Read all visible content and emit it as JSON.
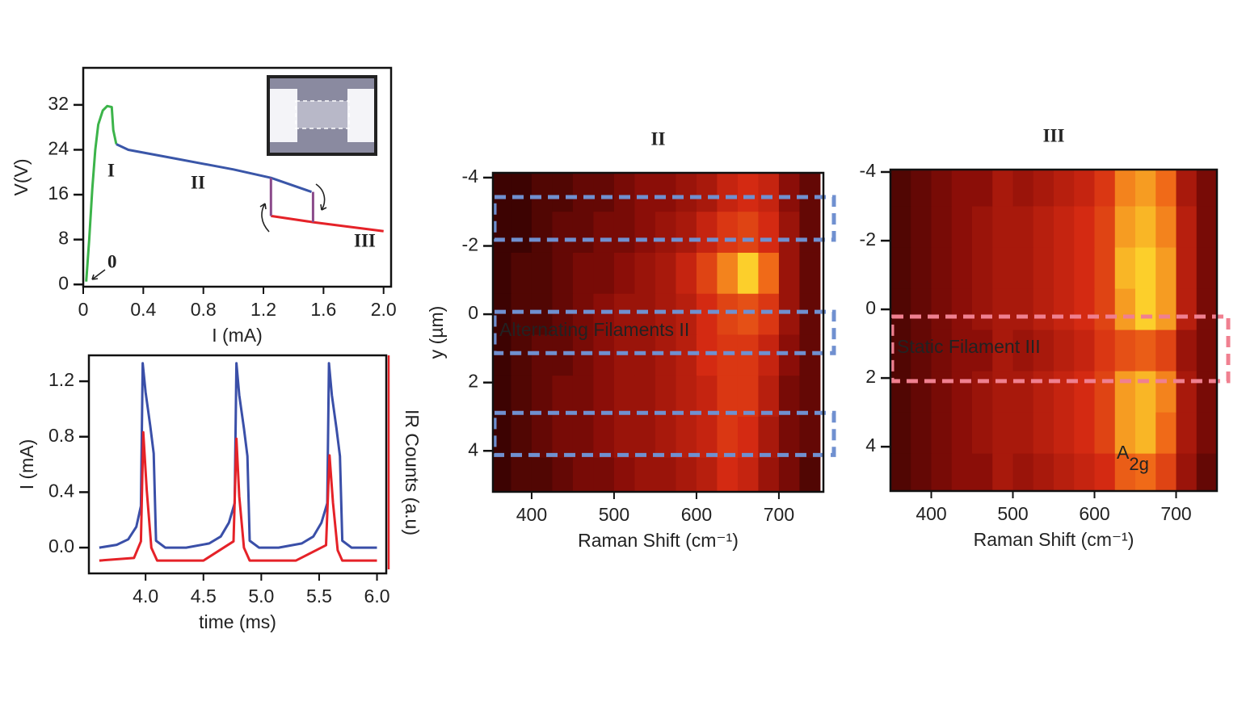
{
  "chart_data": [
    {
      "type": "line",
      "xlabel": "I (mA)",
      "ylabel": "V(V)",
      "xlim": [
        0,
        2.05
      ],
      "ylim": [
        -0.4,
        38.6
      ],
      "xticks": [
        0,
        0.4,
        0.8,
        1.2,
        1.6,
        {
          "value": 2,
          "label": "2.0"
        }
      ],
      "yticks": [
        0,
        8,
        16,
        24,
        32
      ],
      "series": [
        {
          "name": "I",
          "color": "#3cb44a",
          "x": [
            0.02,
            0.04,
            0.06,
            0.08,
            0.1,
            0.13,
            0.16,
            0.19,
            0.2,
            0.22
          ],
          "values": [
            0.5,
            8,
            17,
            24,
            28.5,
            31,
            31.8,
            31.6,
            27.5,
            25
          ]
        },
        {
          "name": "II",
          "color": "#3a56a8",
          "x": [
            0.22,
            0.3,
            0.6,
            1.0,
            1.25,
            1.52
          ],
          "values": [
            25,
            24,
            22.5,
            20.5,
            19,
            16.5
          ]
        },
        {
          "name": "III",
          "color": "#e52228",
          "x": [
            1.25,
            1.53,
            2.0
          ],
          "values": [
            12.2,
            11.1,
            9.5
          ]
        },
        {
          "color": "#8a4a8a",
          "x": [
            1.25,
            1.25
          ],
          "values": [
            12.2,
            19
          ]
        },
        {
          "color": "#8a4a8a",
          "x": [
            1.53,
            1.53
          ],
          "values": [
            16.5,
            11.1
          ]
        }
      ],
      "annotations": [
        "0"
      ]
    },
    {
      "type": "line",
      "xlabel": "time (ms)",
      "ylabel": "I (mA)",
      "y2label": "IR Counts (a.u)",
      "xlim": [
        3.51,
        6.08
      ],
      "ylim": [
        -0.186,
        1.387
      ],
      "y2lim": [
        -0.1,
        1.6
      ],
      "xticks": [
        {
          "value": 4,
          "label": "4.0"
        },
        4.5,
        {
          "value": 5,
          "label": "5.0"
        },
        5.5,
        {
          "value": 6,
          "label": "6.0"
        }
      ],
      "yticks": [
        {
          "value": 0,
          "label": "0.0"
        },
        0.4,
        0.8,
        1.2
      ],
      "series": [
        {
          "color": "#3a4fa8",
          "x": [
            3.6,
            3.75,
            3.85,
            3.92,
            3.96,
            3.975,
            4.0,
            4.04,
            4.07,
            4.09,
            4.17,
            4.35,
            4.55,
            4.65,
            4.72,
            4.77,
            4.785,
            4.81,
            4.85,
            4.88,
            4.9,
            4.98,
            5.15,
            5.35,
            5.45,
            5.52,
            5.57,
            5.585,
            5.61,
            5.65,
            5.68,
            5.7,
            5.78,
            6.0
          ],
          "values": [
            0.0,
            0.02,
            0.06,
            0.15,
            0.3,
            1.33,
            1.12,
            0.88,
            0.68,
            0.05,
            0.0,
            0.0,
            0.03,
            0.08,
            0.18,
            0.32,
            1.33,
            1.1,
            0.86,
            0.66,
            0.05,
            0.0,
            0.0,
            0.03,
            0.08,
            0.18,
            0.32,
            1.33,
            1.1,
            0.86,
            0.66,
            0.05,
            0.0,
            0.0
          ]
        },
        {
          "color": "#e52228",
          "axis": "y2",
          "x": [
            3.6,
            3.9,
            3.96,
            3.98,
            4.01,
            4.05,
            4.1,
            4.5,
            4.76,
            4.785,
            4.81,
            4.85,
            4.9,
            5.3,
            5.56,
            5.59,
            5.62,
            5.66,
            5.7,
            6.0
          ],
          "values": [
            0.0,
            0.02,
            0.15,
            1.0,
            0.55,
            0.1,
            0.0,
            0.0,
            0.15,
            0.95,
            0.5,
            0.1,
            0.0,
            0.0,
            0.12,
            0.82,
            0.45,
            0.08,
            0.0,
            0.0
          ]
        }
      ]
    },
    {
      "type": "heatmap",
      "title": "II",
      "title_color": "#3a56a8",
      "xlabel": "Raman Shift (cm⁻¹)",
      "ylabel": "y  (µm)",
      "xlim": [
        353,
        754
      ],
      "ylim": [
        -4.14,
        5.2
      ],
      "y_inverted": true,
      "xticks": [
        400,
        500,
        600,
        700
      ],
      "yticks": [
        -4,
        -2,
        0,
        2,
        4
      ],
      "colorscale": [
        "#2a0000",
        "#8b0e08",
        "#d42a12",
        "#f06a18",
        "#ffe830"
      ],
      "xbins": [
        350,
        375,
        400,
        425,
        450,
        475,
        500,
        525,
        550,
        575,
        600,
        625,
        650,
        675,
        700,
        725,
        750
      ],
      "ybins": [
        -4.2,
        -3,
        -1.8,
        -0.6,
        0.6,
        1.8,
        3,
        4.2,
        5.4
      ],
      "values": [
        [
          0.05,
          0.05,
          0.1,
          0.1,
          0.15,
          0.15,
          0.2,
          0.25,
          0.25,
          0.3,
          0.35,
          0.45,
          0.5,
          0.45,
          0.25,
          0.15
        ],
        [
          0.05,
          0.05,
          0.1,
          0.15,
          0.15,
          0.2,
          0.2,
          0.25,
          0.3,
          0.35,
          0.45,
          0.55,
          0.6,
          0.5,
          0.3,
          0.15
        ],
        [
          0.05,
          0.1,
          0.1,
          0.15,
          0.2,
          0.2,
          0.25,
          0.3,
          0.35,
          0.45,
          0.6,
          0.8,
          0.95,
          0.75,
          0.3,
          0.15
        ],
        [
          0.05,
          0.1,
          0.1,
          0.15,
          0.2,
          0.25,
          0.3,
          0.3,
          0.35,
          0.4,
          0.5,
          0.6,
          0.65,
          0.55,
          0.3,
          0.15
        ],
        [
          0.05,
          0.1,
          0.15,
          0.15,
          0.2,
          0.25,
          0.3,
          0.3,
          0.35,
          0.4,
          0.5,
          0.55,
          0.55,
          0.45,
          0.25,
          0.15
        ],
        [
          0.05,
          0.1,
          0.15,
          0.2,
          0.2,
          0.25,
          0.3,
          0.3,
          0.35,
          0.4,
          0.45,
          0.55,
          0.55,
          0.4,
          0.2,
          0.15
        ],
        [
          0.05,
          0.1,
          0.15,
          0.2,
          0.2,
          0.25,
          0.3,
          0.3,
          0.35,
          0.4,
          0.45,
          0.55,
          0.5,
          0.35,
          0.2,
          0.15
        ],
        [
          0.05,
          0.1,
          0.1,
          0.15,
          0.2,
          0.2,
          0.25,
          0.3,
          0.3,
          0.35,
          0.4,
          0.5,
          0.45,
          0.3,
          0.2,
          0.1
        ]
      ],
      "regions": [
        {
          "y": [
            -3.43,
            -2.18
          ]
        },
        {
          "y": [
            -0.07,
            1.14
          ]
        },
        {
          "y": [
            2.89,
            4.12
          ]
        }
      ],
      "region_color": "#7090d0",
      "region_label": "Alternating Filaments II"
    },
    {
      "type": "heatmap",
      "title": "III",
      "title_color": "#e52228",
      "xlabel": "Raman Shift (cm⁻¹)",
      "xlim": [
        350,
        750
      ],
      "ylim": [
        -4.07,
        5.29
      ],
      "y_inverted": true,
      "xticks": [
        400,
        500,
        600,
        700
      ],
      "yticks": [
        -4,
        -2,
        0,
        2,
        4
      ],
      "colorscale": [
        "#2a0000",
        "#8b0e08",
        "#d42a12",
        "#f06a18",
        "#ffe830"
      ],
      "xbins": [
        350,
        375,
        400,
        425,
        450,
        475,
        500,
        525,
        550,
        575,
        600,
        625,
        650,
        675,
        700,
        725,
        750
      ],
      "ybins": [
        -4.2,
        -3,
        -1.8,
        -0.6,
        0.6,
        1.8,
        3,
        4.2,
        5.4
      ],
      "values": [
        [
          0.1,
          0.15,
          0.2,
          0.25,
          0.25,
          0.35,
          0.3,
          0.35,
          0.4,
          0.45,
          0.55,
          0.8,
          0.85,
          0.75,
          0.35,
          0.2
        ],
        [
          0.1,
          0.15,
          0.2,
          0.25,
          0.3,
          0.35,
          0.35,
          0.4,
          0.45,
          0.5,
          0.6,
          0.85,
          0.9,
          0.8,
          0.4,
          0.2
        ],
        [
          0.1,
          0.15,
          0.2,
          0.25,
          0.3,
          0.35,
          0.35,
          0.4,
          0.45,
          0.5,
          0.6,
          0.9,
          0.95,
          0.85,
          0.4,
          0.2
        ],
        [
          0.1,
          0.15,
          0.2,
          0.25,
          0.3,
          0.35,
          0.35,
          0.4,
          0.45,
          0.5,
          0.6,
          0.85,
          0.95,
          0.85,
          0.4,
          0.2
        ],
        [
          0.1,
          0.15,
          0.2,
          0.25,
          0.25,
          0.35,
          0.3,
          0.35,
          0.4,
          0.45,
          0.55,
          0.65,
          0.7,
          0.6,
          0.3,
          0.2
        ],
        [
          0.1,
          0.15,
          0.2,
          0.25,
          0.3,
          0.35,
          0.35,
          0.4,
          0.45,
          0.5,
          0.6,
          0.85,
          0.9,
          0.8,
          0.35,
          0.2
        ],
        [
          0.1,
          0.15,
          0.2,
          0.25,
          0.3,
          0.35,
          0.35,
          0.4,
          0.45,
          0.5,
          0.6,
          0.85,
          0.9,
          0.75,
          0.35,
          0.2
        ],
        [
          0.1,
          0.15,
          0.2,
          0.25,
          0.25,
          0.35,
          0.3,
          0.35,
          0.4,
          0.45,
          0.5,
          0.7,
          0.75,
          0.6,
          0.3,
          0.15
        ]
      ],
      "regions": [
        {
          "y": [
            0.21,
            2.09
          ]
        }
      ],
      "region_color": "#f08090",
      "region_label": "Static Filament III",
      "annotation": {
        "text": "A",
        "sub": "2g"
      }
    }
  ]
}
